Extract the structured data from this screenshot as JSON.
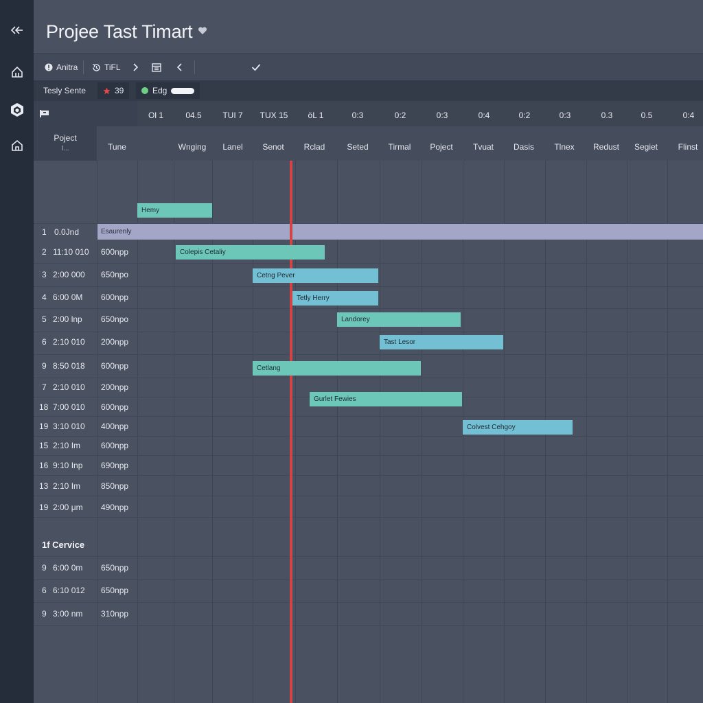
{
  "sidebar": {
    "items": [
      {
        "icon": "collapse-icon"
      },
      {
        "icon": "home-icon"
      },
      {
        "icon": "hexagon-icon"
      },
      {
        "icon": "house-outline-icon"
      }
    ]
  },
  "header": {
    "title": "Projee Tast Timart"
  },
  "toolbar": {
    "item1": "Anitra",
    "item2": "TiFL"
  },
  "filter": {
    "label": "Tesly Sente",
    "chip1": "39",
    "chip2": "Edg"
  },
  "grid": {
    "col_header_project": "Poject",
    "col_header_project_sub": "I...",
    "col_header_time": "Tune",
    "periods": [
      "Ol 1",
      "04.5",
      "TUI 7",
      "TUX 15",
      "öL 1",
      "0:3",
      "0:2",
      "0:3",
      "0:4",
      "0:2",
      "0:3",
      "0.3",
      "0.5",
      "0:4"
    ],
    "days": [
      "Wnging",
      "Lanel",
      "Senot",
      "Rclad",
      "Seted",
      "Tirmal",
      "Poject",
      "Tvuat",
      "Dasis",
      "Tlnex",
      "Redust",
      "Segiet",
      "Flinst"
    ]
  },
  "rows": [
    {
      "id": "1",
      "label": "0.0Jnd",
      "time": ""
    },
    {
      "id": "2",
      "label": "11:10 010",
      "time": "600npp"
    },
    {
      "id": "3",
      "label": "2:00 000",
      "time": "650npo"
    },
    {
      "id": "4",
      "label": "6:00 0M",
      "time": "600npp"
    },
    {
      "id": "5",
      "label": "2:00 lnp",
      "time": "650npo"
    },
    {
      "id": "6",
      "label": "2:10 010",
      "time": "200npp"
    },
    {
      "id": "9",
      "label": "8:50 018",
      "time": "600npp"
    },
    {
      "id": "7",
      "label": "2:10 010",
      "time": "200npp"
    },
    {
      "id": "18",
      "label": "7:00 010",
      "time": "600npp"
    },
    {
      "id": "19",
      "label": "3:10 010",
      "time": "400npp"
    },
    {
      "id": "15",
      "label": "2:10 Im",
      "time": "600npp"
    },
    {
      "id": "16",
      "label": "9:10 Inp",
      "time": "690npp"
    },
    {
      "id": "13",
      "label": "2:10 Im",
      "time": "850npp"
    },
    {
      "id": "19",
      "label": "2:00 μm",
      "time": "490npp"
    }
  ],
  "section": {
    "title": "1f Cervice",
    "rows": [
      {
        "id": "9",
        "label": "6:00 0m",
        "time": "650npp"
      },
      {
        "id": "6",
        "label": "6:10 012",
        "time": "650npp"
      },
      {
        "id": "9",
        "label": "3:00 nm",
        "time": "310npp"
      }
    ]
  },
  "tasks": {
    "top": "Hemy",
    "group": "Esaurenly",
    "t1": "Colepis Cetaliy",
    "t2": "Cetng Pever",
    "t3": "Tetly Herry",
    "t4": "Landorey",
    "t5": "Tast Lesor",
    "t6": "Cetlang",
    "t7": "Gurlet Fewies",
    "t8": "Colvest Cehgoy"
  },
  "colors": {
    "sidebar_bg": "#262d3a",
    "background": "#4a5160",
    "today_line": "#d24546",
    "bar_green": "#6cc7b8",
    "bar_blue": "#73bfd3",
    "group_bar": "#a3a6c6",
    "chip_red": "#e0494b",
    "chip_green": "#6fcf84"
  }
}
